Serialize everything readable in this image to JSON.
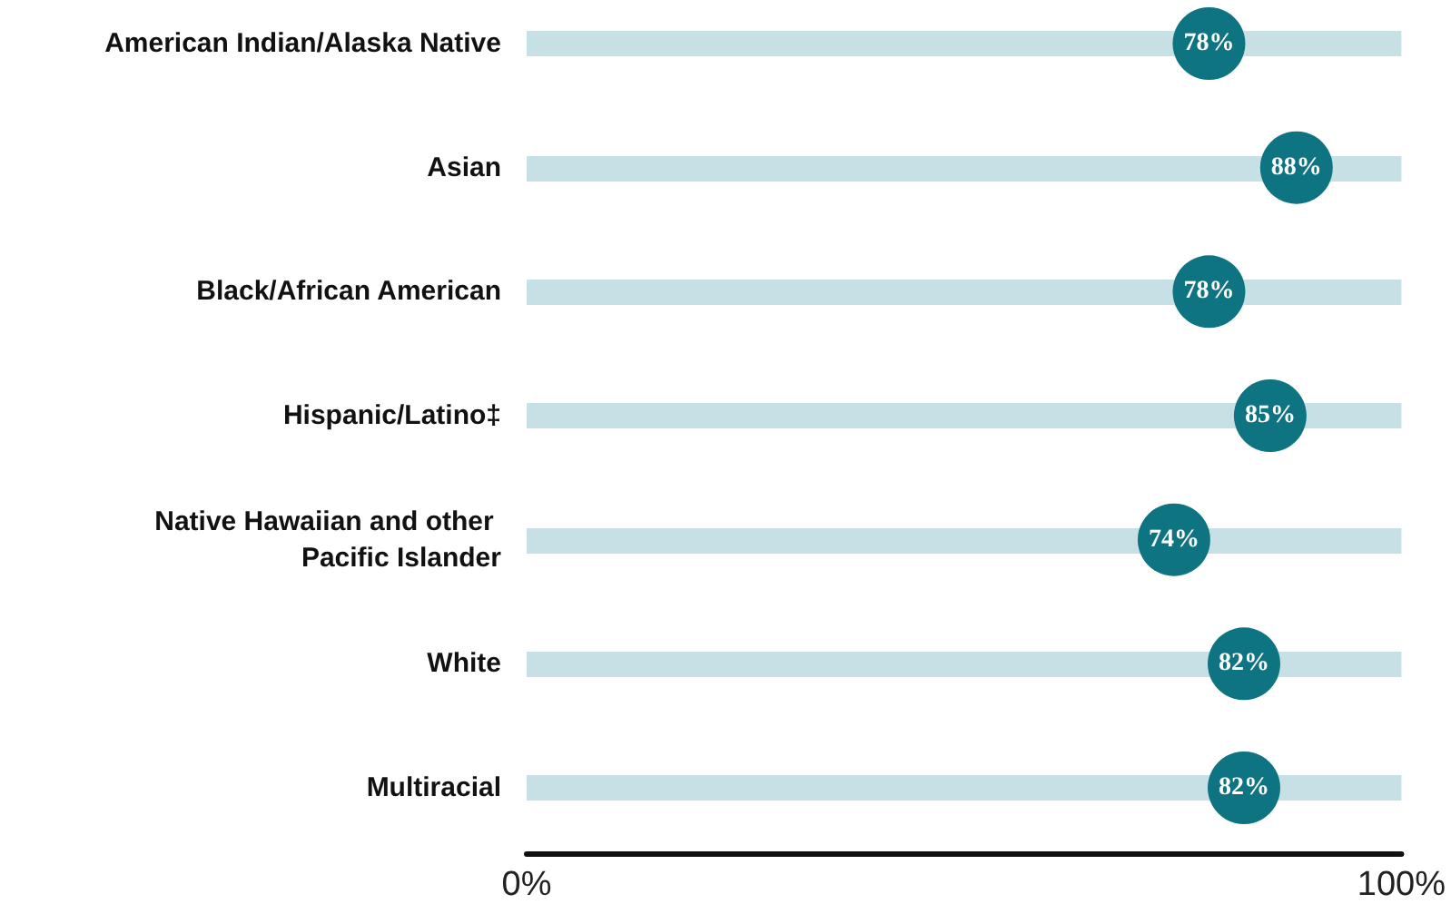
{
  "chart_data": {
    "type": "scatter",
    "orientation": "horizontal",
    "categories": [
      "American Indian/Alaska Native",
      "Asian",
      "Black/African American",
      "Hispanic/Latino‡",
      "Native Hawaiian and other Pacific Islander",
      "White",
      "Multiracial"
    ],
    "values": [
      78,
      88,
      78,
      85,
      74,
      82,
      82
    ],
    "value_labels": [
      "78%",
      "88%",
      "78%",
      "85%",
      "74%",
      "82%",
      "82%"
    ],
    "color": "#0f7482",
    "marker": "circle",
    "grid": "y",
    "xlim": [
      0,
      100
    ],
    "xticks": [
      {
        "value": 0,
        "label": "0%"
      },
      {
        "value": 100,
        "label": "100%"
      }
    ]
  }
}
